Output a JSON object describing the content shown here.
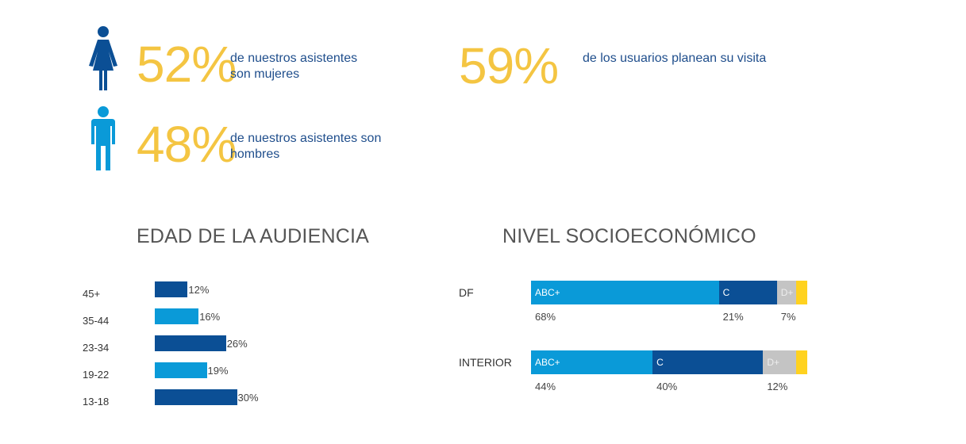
{
  "stats": {
    "women": {
      "value": "52%",
      "text_line1": "de nuestros asistentes",
      "text_line2": "son mujeres"
    },
    "men": {
      "value": "48%",
      "text_line1": "de nuestros asistentes son",
      "text_line2": "hombres"
    },
    "plan": {
      "value": "59%",
      "text": "de los usuarios planean su visita"
    }
  },
  "colors": {
    "yellow": "#f4c542",
    "dark_blue": "#0b4f95",
    "light_blue": "#0a9ad8",
    "gray": "#c4c4c4",
    "gold": "#ffd21f"
  },
  "chart_data": [
    {
      "type": "bar",
      "orientation": "horizontal",
      "title": "EDAD DE LA AUDIENCIA",
      "categories": [
        "45+",
        "35-44",
        "23-34",
        "19-22",
        "13-18"
      ],
      "values": [
        12,
        16,
        26,
        19,
        30
      ],
      "value_labels": [
        "12%",
        "16%",
        "26%",
        "19%",
        "30%"
      ]
    },
    {
      "type": "bar",
      "orientation": "horizontal",
      "stacked": true,
      "title": "NIVEL SOCIOECONÓMICO",
      "rows": [
        {
          "label": "DF",
          "segments": [
            {
              "name": "ABC+",
              "value": 68,
              "pct_label": "68%"
            },
            {
              "name": "C",
              "value": 21,
              "pct_label": "21%"
            },
            {
              "name": "D+",
              "value": 7,
              "pct_label": "7%"
            },
            {
              "name": "",
              "value": 4,
              "pct_label": ""
            }
          ]
        },
        {
          "label": "INTERIOR",
          "segments": [
            {
              "name": "ABC+",
              "value": 44,
              "pct_label": "44%"
            },
            {
              "name": "C",
              "value": 40,
              "pct_label": "40%"
            },
            {
              "name": "D+",
              "value": 12,
              "pct_label": "12%"
            },
            {
              "name": "",
              "value": 4,
              "pct_label": ""
            }
          ]
        }
      ]
    }
  ]
}
